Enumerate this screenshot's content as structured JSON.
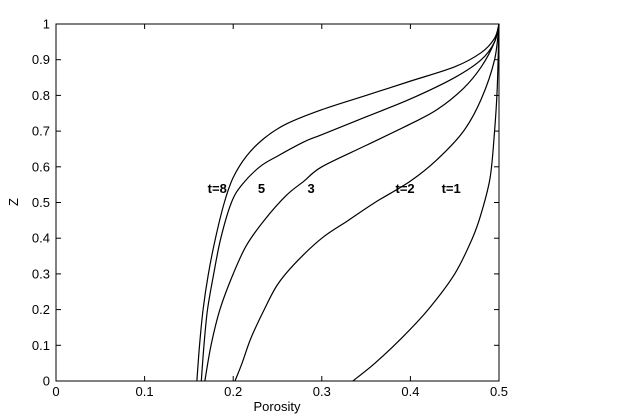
{
  "chart_data": {
    "type": "line",
    "title": "",
    "xlabel": "Porosity",
    "ylabel": "Z",
    "xlim": [
      0,
      0.5
    ],
    "ylim": [
      0,
      1
    ],
    "x_ticks": [
      "0",
      "0.1",
      "0.2",
      "0.3",
      "0.4",
      "0.5"
    ],
    "y_ticks": [
      "0",
      "0.1",
      "0.2",
      "0.3",
      "0.4",
      "0.5",
      "0.6",
      "0.7",
      "0.8",
      "0.9",
      "1"
    ],
    "grid": false,
    "legend": "none",
    "series": [
      {
        "x": [
          0.159,
          0.162,
          0.166,
          0.172,
          0.18,
          0.19,
          0.2,
          0.215,
          0.235,
          0.26,
          0.3,
          0.35,
          0.4,
          0.45,
          0.48,
          0.495,
          0.5
        ],
        "y": [
          0,
          0.1,
          0.2,
          0.3,
          0.4,
          0.5,
          0.57,
          0.63,
          0.68,
          0.72,
          0.76,
          0.8,
          0.84,
          0.88,
          0.92,
          0.96,
          1.0
        ]
      },
      {
        "x": [
          0.164,
          0.167,
          0.171,
          0.178,
          0.186,
          0.198,
          0.21,
          0.23,
          0.25,
          0.28,
          0.3,
          0.35,
          0.4,
          0.45,
          0.48,
          0.495,
          0.5
        ],
        "y": [
          0,
          0.1,
          0.2,
          0.3,
          0.4,
          0.5,
          0.55,
          0.6,
          0.63,
          0.67,
          0.69,
          0.74,
          0.79,
          0.85,
          0.9,
          0.95,
          1.0
        ]
      },
      {
        "x": [
          0.168,
          0.175,
          0.185,
          0.2,
          0.215,
          0.235,
          0.26,
          0.28,
          0.3,
          0.35,
          0.4,
          0.43,
          0.46,
          0.48,
          0.495,
          0.5
        ],
        "y": [
          0,
          0.1,
          0.2,
          0.3,
          0.38,
          0.45,
          0.52,
          0.56,
          0.6,
          0.66,
          0.72,
          0.76,
          0.82,
          0.88,
          0.95,
          1.0
        ]
      },
      {
        "x": [
          0.202,
          0.21,
          0.22,
          0.235,
          0.25,
          0.27,
          0.3,
          0.33,
          0.36,
          0.4,
          0.43,
          0.46,
          0.48,
          0.495,
          0.5
        ],
        "y": [
          0,
          0.05,
          0.12,
          0.2,
          0.27,
          0.33,
          0.4,
          0.45,
          0.5,
          0.56,
          0.62,
          0.7,
          0.79,
          0.9,
          1.0
        ]
      },
      {
        "x": [
          0.335,
          0.36,
          0.39,
          0.42,
          0.45,
          0.47,
          0.48,
          0.49,
          0.495,
          0.498,
          0.5
        ],
        "y": [
          0,
          0.05,
          0.12,
          0.2,
          0.3,
          0.4,
          0.47,
          0.57,
          0.7,
          0.82,
          1.0
        ]
      }
    ],
    "annotations": [
      {
        "text": "t=8",
        "x": 0.182,
        "y": 0.54
      },
      {
        "text": "5",
        "x": 0.232,
        "y": 0.54
      },
      {
        "text": "3",
        "x": 0.288,
        "y": 0.54
      },
      {
        "text": "t=2",
        "x": 0.394,
        "y": 0.54
      },
      {
        "text": "t=1",
        "x": 0.446,
        "y": 0.54
      }
    ]
  }
}
